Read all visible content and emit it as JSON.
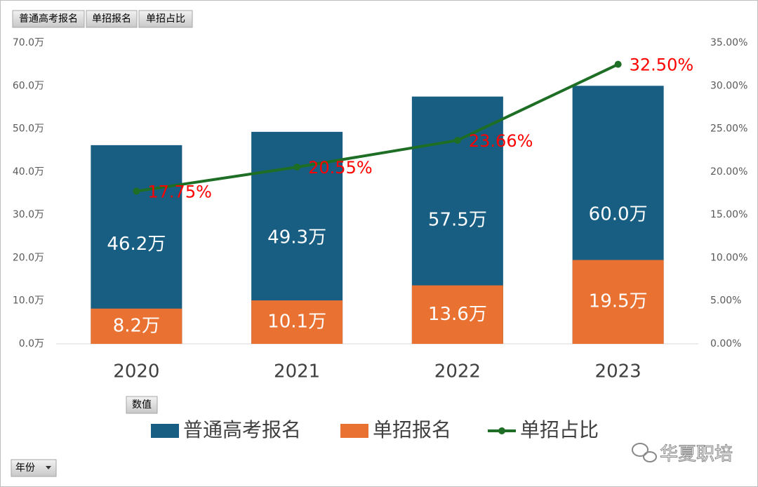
{
  "field_buttons": [
    "普通高考报名",
    "单招报名",
    "单招占比"
  ],
  "value_button": "数值",
  "axis_button": "年份",
  "watermark": "华夏职培",
  "chart_data": {
    "type": "bar",
    "categories": [
      "2020",
      "2021",
      "2022",
      "2023"
    ],
    "series": [
      {
        "name": "普通高考报名",
        "color": "#175e82",
        "values": [
          46.2,
          49.3,
          57.5,
          60.0
        ],
        "value_labels": [
          "46.2万",
          "49.3万",
          "57.5万",
          "60.0万"
        ]
      },
      {
        "name": "单招报名",
        "color": "#e97232",
        "values": [
          8.2,
          10.1,
          13.6,
          19.5
        ],
        "value_labels": [
          "8.2万",
          "10.1万",
          "13.6万",
          "19.5万"
        ]
      },
      {
        "name": "单招占比",
        "type": "line",
        "axis": "y2",
        "color": "#1e6e26",
        "label_color": "#ff0000",
        "values": [
          17.75,
          20.55,
          23.66,
          32.5
        ],
        "value_labels": [
          "17.75%",
          "20.55%",
          "23.66%",
          "32.50%"
        ]
      }
    ],
    "ylim": [
      0,
      70
    ],
    "yticks": [
      {
        "value": 0,
        "label": "0.0万"
      },
      {
        "value": 10,
        "label": "10.0万"
      },
      {
        "value": 20,
        "label": "20.0万"
      },
      {
        "value": 30,
        "label": "30.0万"
      },
      {
        "value": 40,
        "label": "40.0万"
      },
      {
        "value": 50,
        "label": "50.0万"
      },
      {
        "value": 60,
        "label": "60.0万"
      },
      {
        "value": 70,
        "label": "70.0万"
      }
    ],
    "y2lim": [
      0,
      35
    ],
    "y2ticks": [
      {
        "value": 0,
        "label": "0.00%"
      },
      {
        "value": 5,
        "label": "5.00%"
      },
      {
        "value": 10,
        "label": "10.00%"
      },
      {
        "value": 15,
        "label": "15.00%"
      },
      {
        "value": 20,
        "label": "20.00%"
      },
      {
        "value": 25,
        "label": "25.00%"
      },
      {
        "value": 30,
        "label": "30.00%"
      },
      {
        "value": 35,
        "label": "35.00%"
      }
    ],
    "grid": false,
    "legend": "bottom"
  }
}
